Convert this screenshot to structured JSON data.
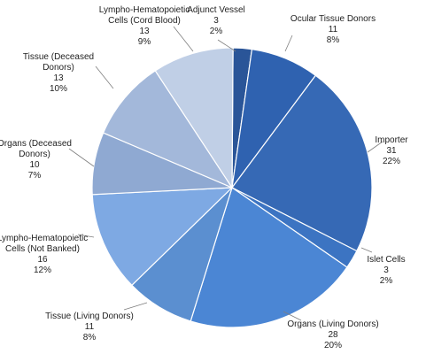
{
  "chart_data": {
    "type": "pie",
    "slices": [
      {
        "label": "Adjunct Vessel",
        "label_lines": [
          "Adjunct Vessel"
        ],
        "value": 3,
        "percent": "2%",
        "color": "#2a5598"
      },
      {
        "label": "Ocular Tissue Donors",
        "label_lines": [
          "Ocular Tissue Donors"
        ],
        "value": 11,
        "percent": "8%",
        "color": "#2f62b0"
      },
      {
        "label": "Importer",
        "label_lines": [
          "Importer"
        ],
        "value": 31,
        "percent": "22%",
        "color": "#3669b5"
      },
      {
        "label": "Islet Cells",
        "label_lines": [
          "Islet Cells"
        ],
        "value": 3,
        "percent": "2%",
        "color": "#3c74c2"
      },
      {
        "label": "Organs (Living Donors)",
        "label_lines": [
          "Organs (Living Donors)"
        ],
        "value": 28,
        "percent": "20%",
        "color": "#4b86d4"
      },
      {
        "label": "Tissue (Living Donors)",
        "label_lines": [
          "Tissue (Living Donors)"
        ],
        "value": 11,
        "percent": "8%",
        "color": "#5b8fd0"
      },
      {
        "label": "Lympho-Hematopoietic Cells (Not Banked)",
        "label_lines": [
          "Lympho-Hematopoietic",
          "Cells (Not Banked)"
        ],
        "value": 16,
        "percent": "12%",
        "color": "#7ea9e3"
      },
      {
        "label": "Organs (Deceased Donors)",
        "label_lines": [
          "Organs (Deceased",
          "Donors)"
        ],
        "value": 10,
        "percent": "7%",
        "color": "#8fa9d2"
      },
      {
        "label": "Tissue (Deceased Donors)",
        "label_lines": [
          "Tissue (Deceased",
          "Donors)"
        ],
        "value": 13,
        "percent": "10%",
        "color": "#a3b8da"
      },
      {
        "label": "Lympho-Hematopoietic Cells (Cord Blood)",
        "label_lines": [
          "Lympho-Hematopoietic",
          "Cells (Cord Blood)"
        ],
        "value": 13,
        "percent": "9%",
        "color": "#c0cfe6"
      }
    ]
  }
}
